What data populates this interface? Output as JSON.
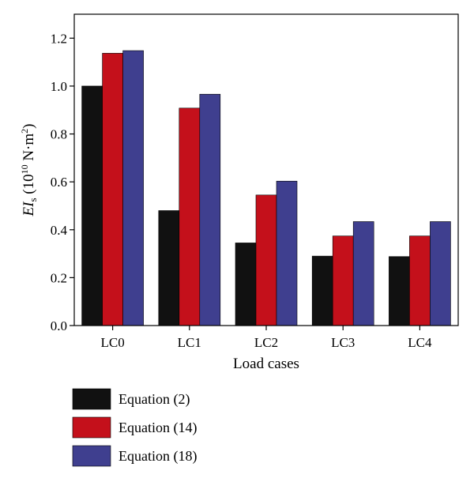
{
  "chart_data": {
    "type": "bar",
    "categories": [
      "LC0",
      "LC1",
      "LC2",
      "LC3",
      "LC4"
    ],
    "series": [
      {
        "name": "Equation (2)",
        "color": "#111111",
        "values": [
          1.0,
          0.48,
          0.345,
          0.29,
          0.288
        ]
      },
      {
        "name": "Equation (14)",
        "color": "#c4101b",
        "values": [
          1.137,
          0.908,
          0.545,
          0.374,
          0.374
        ]
      },
      {
        "name": "Equation (18)",
        "color": "#3f3f8f",
        "values": [
          1.148,
          0.966,
          0.603,
          0.434,
          0.434
        ]
      }
    ],
    "yticks": [
      "0.0",
      "0.2",
      "0.4",
      "0.6",
      "0.8",
      "1.0",
      "1.2"
    ],
    "ylim": [
      0,
      1.3
    ],
    "xlabel": "Load cases",
    "ylabel": {
      "main": "EI",
      "sub": "s",
      "unit_open": " (10",
      "exp1": "10",
      "unit_mid": " N·m",
      "exp2": "2",
      "unit_close": ")"
    },
    "grid": false,
    "legend_position": "bottom-left"
  }
}
